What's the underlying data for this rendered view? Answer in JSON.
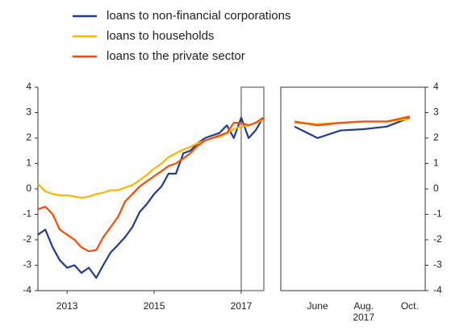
{
  "chart_data": [
    {
      "type": "line",
      "x": [
        2012.33,
        2012.5,
        2012.67,
        2012.83,
        2013,
        2013.17,
        2013.33,
        2013.5,
        2013.67,
        2013.83,
        2014,
        2014.17,
        2014.33,
        2014.5,
        2014.67,
        2014.83,
        2015,
        2015.17,
        2015.33,
        2015.5,
        2015.67,
        2015.83,
        2016,
        2016.17,
        2016.33,
        2016.5,
        2016.67,
        2016.83,
        2017,
        2017.17,
        2017.33,
        2017.5
      ],
      "series": [
        {
          "name": "loans to non-financial corporations",
          "color": "#1f3c8f",
          "values": [
            -1.8,
            -1.6,
            -2.3,
            -2.8,
            -3.1,
            -3.0,
            -3.3,
            -3.1,
            -3.5,
            -3.0,
            -2.5,
            -2.2,
            -1.9,
            -1.5,
            -0.9,
            -0.6,
            -0.2,
            0.1,
            0.6,
            0.6,
            1.4,
            1.5,
            1.8,
            2.0,
            2.1,
            2.2,
            2.5,
            2.0,
            2.8,
            2.0,
            2.3,
            2.8
          ]
        },
        {
          "name": "loans to households",
          "color": "#ffb400",
          "values": [
            0.2,
            -0.1,
            -0.2,
            -0.25,
            -0.25,
            -0.3,
            -0.35,
            -0.3,
            -0.2,
            -0.15,
            -0.05,
            -0.05,
            0.05,
            0.15,
            0.35,
            0.55,
            0.8,
            1.0,
            1.25,
            1.4,
            1.55,
            1.65,
            1.8,
            1.9,
            2.0,
            2.05,
            2.2,
            2.35,
            2.45,
            2.5,
            2.6,
            2.7
          ]
        },
        {
          "name": "loans to the private sector",
          "color": "#ff4b00",
          "values": [
            -0.8,
            -0.7,
            -1.0,
            -1.6,
            -1.8,
            -2.0,
            -2.3,
            -2.45,
            -2.4,
            -1.9,
            -1.5,
            -1.1,
            -0.5,
            -0.2,
            0.1,
            0.3,
            0.5,
            0.7,
            0.9,
            1.0,
            1.2,
            1.4,
            1.7,
            1.9,
            2.0,
            2.1,
            2.2,
            2.6,
            2.6,
            2.5,
            2.6,
            2.8
          ]
        }
      ],
      "xlim": [
        2012.33,
        2017.52
      ],
      "xticks": [
        2013,
        2015,
        2017
      ],
      "ylim": [
        -4,
        4
      ],
      "yticks": [
        -4,
        -3,
        -2,
        -1,
        0,
        1,
        2,
        3,
        4
      ],
      "y_axis_side": "left",
      "highlight": [
        2017,
        2017.52
      ]
    },
    {
      "type": "line",
      "categories": [
        null,
        "June",
        null,
        "Aug.",
        null,
        "Oct."
      ],
      "xlabel": "2017",
      "series": [
        {
          "color": "#1f3c8f",
          "values": [
            2.45,
            2.0,
            2.3,
            2.35,
            2.45,
            2.8
          ]
        },
        {
          "color": "#ffb400",
          "values": [
            2.6,
            2.55,
            2.6,
            2.65,
            2.65,
            2.75
          ]
        },
        {
          "color": "#ff4b00",
          "values": [
            2.65,
            2.5,
            2.6,
            2.65,
            2.65,
            2.85
          ]
        }
      ],
      "ylim": [
        -4,
        4
      ],
      "yticks": [
        -4,
        -3,
        -2,
        -1,
        0,
        1,
        2,
        3,
        4
      ],
      "y_axis_side": "right"
    }
  ]
}
